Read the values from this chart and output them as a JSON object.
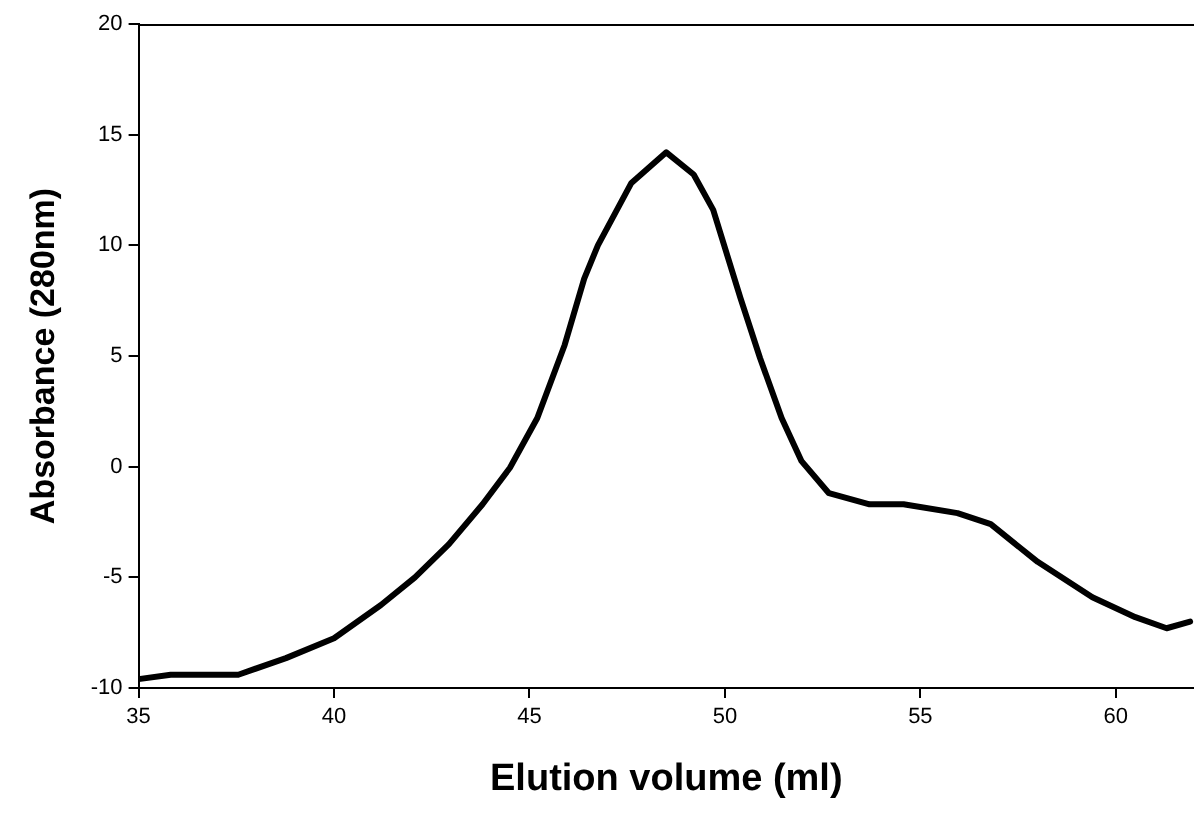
{
  "chart_data": {
    "type": "line",
    "xlabel": "Elution volume (ml)",
    "ylabel": "Absorbance (280nm)",
    "x": [
      35,
      35.82,
      37.55,
      38.77,
      40,
      41.2,
      42.07,
      42.94,
      43.8,
      44.5,
      45.2,
      45.9,
      46.4,
      46.75,
      47.6,
      48.5,
      49.2,
      49.7,
      50.4,
      50.9,
      51.45,
      51.96,
      52.66,
      53.7,
      54.57,
      55.95,
      56.8,
      58,
      59.4,
      60.5,
      61.3,
      61.9
    ],
    "series": [
      {
        "color": "#000000",
        "values": [
          -9.6,
          -9.4,
          -9.4,
          -8.65,
          -7.75,
          -6.25,
          -5,
          -3.5,
          -1.7,
          -0.05,
          2.2,
          5.5,
          8.5,
          10,
          12.8,
          14.2,
          13.2,
          11.6,
          7.6,
          4.9,
          2.2,
          0.25,
          -1.2,
          -1.7,
          -1.7,
          -2.1,
          -2.6,
          -4.3,
          -5.9,
          -6.8,
          -7.3,
          -7
        ]
      }
    ],
    "xlim": [
      35,
      62
    ],
    "xticks": [
      35,
      40,
      45,
      50,
      55,
      60
    ],
    "ylim": [
      -10,
      20
    ],
    "yticks": [
      -10,
      -5,
      0,
      5,
      10,
      15,
      20
    ],
    "grid": false,
    "legend": false,
    "marker": "none",
    "line_style": "solid"
  }
}
